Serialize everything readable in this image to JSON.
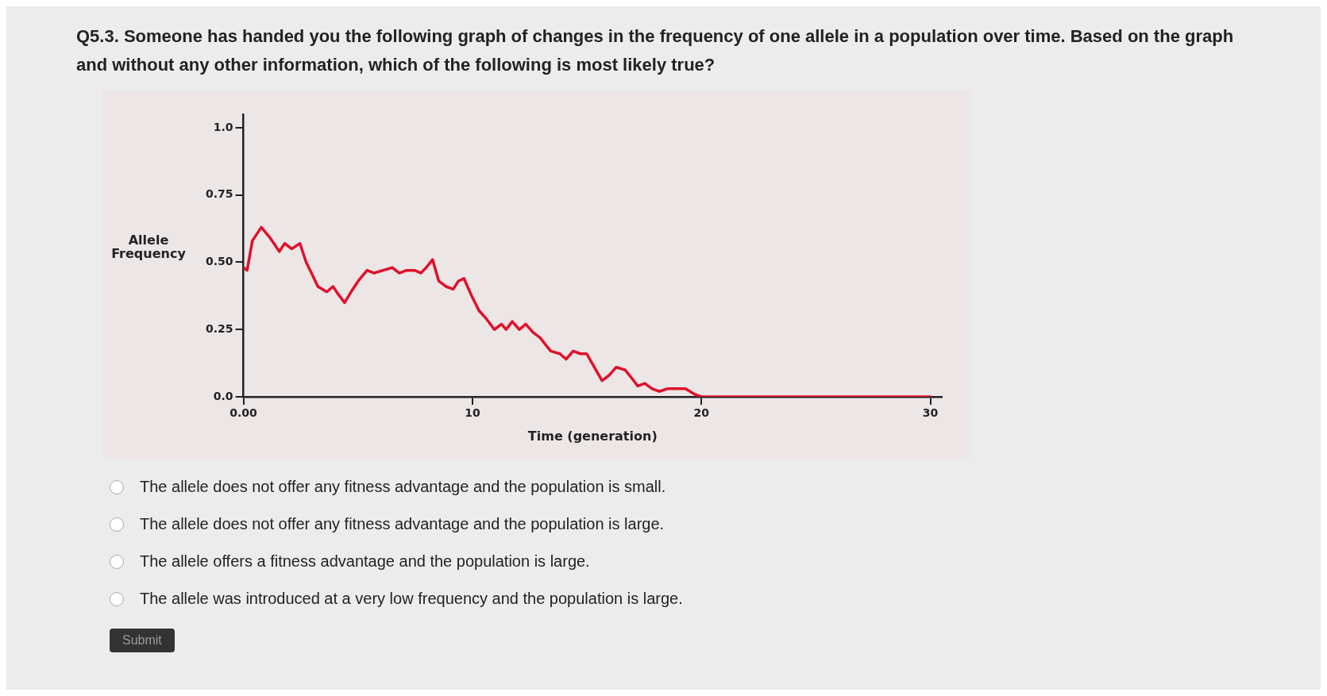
{
  "chart_data": {
    "type": "line",
    "title": "Q5.3. Someone has handed you the following graph of changes in the frequency of one allele in a population over time. Based on the graph and without any other information, which of the following is most likely true?",
    "xlabel": "Time (generation)",
    "ylabel": "Allele Frequency",
    "x": [
      0,
      0.16,
      0.39,
      0.78,
      1.17,
      1.57,
      1.8,
      2.11,
      2.47,
      2.74,
      2.97,
      3.25,
      3.64,
      3.91,
      4.15,
      4.42,
      4.7,
      5.01,
      5.4,
      5.71,
      6.1,
      6.5,
      6.81,
      7.12,
      7.48,
      7.75,
      7.98,
      8.26,
      8.53,
      8.85,
      9.16,
      9.39,
      9.63,
      9.94,
      10.29,
      10.61,
      10.96,
      11.27,
      11.47,
      11.74,
      12.05,
      12.33,
      12.64,
      12.95,
      13.23,
      13.42,
      13.82,
      14.09,
      14.4,
      14.72,
      14.99,
      15.26,
      15.66,
      15.97,
      16.28,
      16.67,
      16.95,
      17.22,
      17.53,
      17.85,
      18.16,
      18.51,
      18.98,
      19.3,
      19.69,
      20,
      30
    ],
    "series": [
      {
        "color": "#e0102a",
        "values": [
          0.48,
          0.47,
          0.58,
          0.63,
          0.59,
          0.54,
          0.57,
          0.55,
          0.57,
          0.5,
          0.46,
          0.41,
          0.39,
          0.41,
          0.38,
          0.35,
          0.39,
          0.43,
          0.47,
          0.46,
          0.47,
          0.48,
          0.46,
          0.47,
          0.47,
          0.46,
          0.48,
          0.51,
          0.43,
          0.41,
          0.4,
          0.43,
          0.44,
          0.38,
          0.32,
          0.29,
          0.25,
          0.27,
          0.25,
          0.28,
          0.25,
          0.27,
          0.24,
          0.22,
          0.19,
          0.17,
          0.16,
          0.14,
          0.17,
          0.16,
          0.16,
          0.12,
          0.06,
          0.08,
          0.11,
          0.1,
          0.07,
          0.04,
          0.05,
          0.03,
          0.02,
          0.03,
          0.03,
          0.03,
          0.01,
          0,
          0
        ]
      }
    ],
    "xlim": [
      0,
      30.5
    ],
    "ylim": [
      0,
      1.05
    ],
    "xticks": [
      {
        "value": 0,
        "label": "0.00"
      },
      10,
      20,
      30
    ],
    "yticks": [
      {
        "value": 0,
        "label": "0.0"
      },
      0.25,
      {
        "value": 0.5,
        "label": "0.50"
      },
      0.75,
      {
        "value": 1,
        "label": "1.0"
      }
    ],
    "grid": false,
    "legend": false,
    "marker": "none",
    "line_style": "solid",
    "annotations": [
      "The allele does not offer any fitness advantage and the population is small.",
      "The allele does not offer any fitness advantage and the population is large.",
      "The allele offers a fitness advantage and the population is large.",
      "The allele was introduced at a very low frequency and the population is large.",
      "Submit"
    ]
  }
}
